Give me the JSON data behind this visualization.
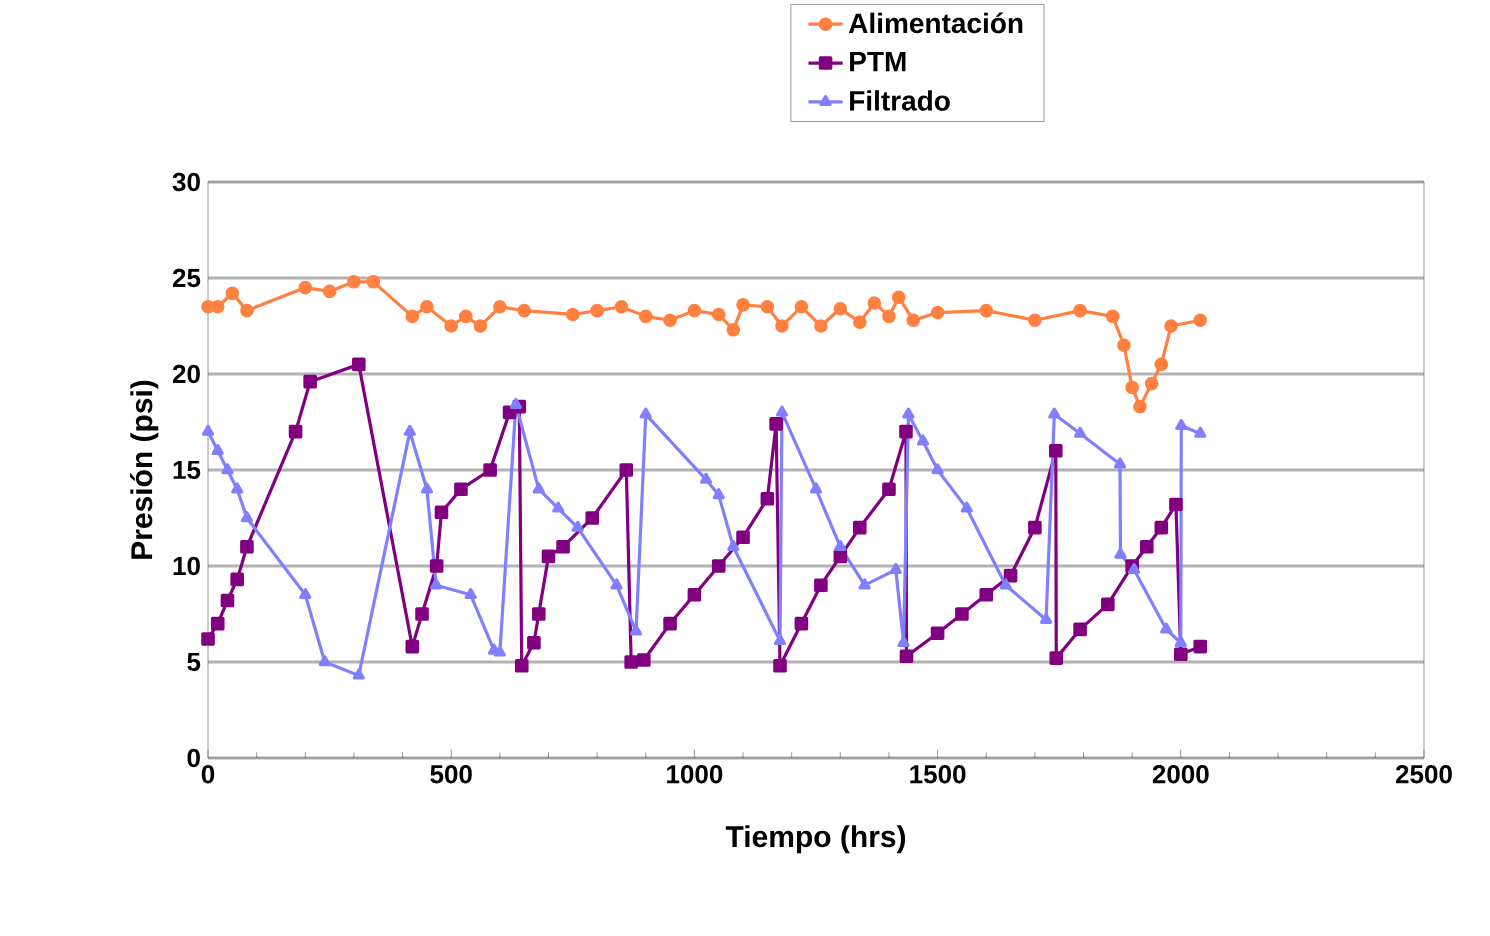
{
  "chart_data": {
    "type": "line",
    "xlabel": "Tiempo (hrs)",
    "ylabel": "Presión (psi)",
    "xlim": [
      0,
      2500
    ],
    "xticks": [
      0,
      500,
      1000,
      1500,
      2000,
      2500
    ],
    "ylim": [
      0,
      30
    ],
    "yticks": [
      0,
      5,
      10,
      15,
      20,
      25,
      30
    ],
    "grid": "y",
    "legend": "top right",
    "series": [
      {
        "name": "Alimentación",
        "color": "#ff8040",
        "marker": "circle",
        "x": [
          0,
          20,
          50,
          80,
          200,
          250,
          300,
          340,
          420,
          450,
          500,
          530,
          560,
          600,
          650,
          750,
          800,
          850,
          900,
          950,
          1000,
          1050,
          1080,
          1100,
          1150,
          1180,
          1220,
          1260,
          1300,
          1340,
          1370,
          1400,
          1420,
          1450,
          1500,
          1600,
          1700,
          1793,
          1860,
          1883,
          1900,
          1916,
          1940,
          1960,
          1980,
          2040
        ],
        "values": [
          23.5,
          23.5,
          24.2,
          23.3,
          24.5,
          24.3,
          24.8,
          24.8,
          23,
          23.5,
          22.5,
          23,
          22.5,
          23.5,
          23.3,
          23.1,
          23.3,
          23.5,
          23,
          22.8,
          23.3,
          23.1,
          22.3,
          23.6,
          23.5,
          22.5,
          23.5,
          22.5,
          23.4,
          22.7,
          23.7,
          23,
          24,
          22.8,
          23.2,
          23.3,
          22.8,
          23.3,
          23,
          21.5,
          19.3,
          18.3,
          19.5,
          20.5,
          22.5,
          22.8
        ]
      },
      {
        "name": "PTM",
        "color": "#800080",
        "marker": "square",
        "x": [
          0,
          20,
          40,
          60,
          80,
          180,
          210,
          310,
          420,
          440,
          470,
          480,
          520,
          580,
          620,
          640,
          645,
          670,
          680,
          700,
          730,
          790,
          860,
          870,
          896,
          950,
          1000,
          1050,
          1100,
          1150,
          1168,
          1176,
          1220,
          1260,
          1300,
          1340,
          1400,
          1435,
          1436,
          1500,
          1550,
          1600,
          1650,
          1700,
          1743,
          1744,
          1793,
          1850,
          1900,
          1930,
          1960,
          1990,
          2000,
          2040
        ],
        "values": [
          6.2,
          7,
          8.2,
          9.3,
          11,
          17,
          19.6,
          20.5,
          5.8,
          7.5,
          10,
          12.8,
          14,
          15,
          18,
          18.3,
          4.8,
          6,
          7.5,
          10.5,
          11,
          12.5,
          15,
          5,
          5.1,
          7,
          8.5,
          10,
          11.5,
          13.5,
          17.4,
          4.8,
          7,
          9,
          10.5,
          12,
          14,
          17,
          5.3,
          6.5,
          7.5,
          8.5,
          9.5,
          12,
          16,
          5.2,
          6.7,
          8,
          10,
          11,
          12,
          13.2,
          5.4,
          5.8
        ]
      },
      {
        "name": "Filtrado",
        "color": "#8080ff",
        "marker": "triangle",
        "x": [
          0,
          20,
          40,
          60,
          80,
          200,
          240,
          310,
          415,
          450,
          469,
          540,
          588,
          600,
          633,
          680,
          720,
          760,
          840,
          880,
          900,
          1024,
          1050,
          1080,
          1176,
          1180,
          1250,
          1300,
          1350,
          1414,
          1430,
          1440,
          1470,
          1500,
          1560,
          1640,
          1723,
          1740,
          1793,
          1875,
          1876,
          1904,
          1970,
          2000,
          2001,
          2040
        ],
        "values": [
          17,
          16,
          15,
          14,
          12.5,
          8.5,
          5,
          4.3,
          17,
          14,
          9,
          8.5,
          5.6,
          5.5,
          18.4,
          14,
          13,
          12,
          9,
          6.6,
          17.9,
          14.5,
          13.7,
          11,
          6.1,
          18,
          14,
          11,
          9,
          9.8,
          6,
          17.9,
          16.5,
          15,
          13,
          9,
          7.2,
          17.9,
          16.9,
          15.3,
          10.6,
          9.8,
          6.7,
          6,
          17.3,
          16.9
        ]
      }
    ]
  }
}
